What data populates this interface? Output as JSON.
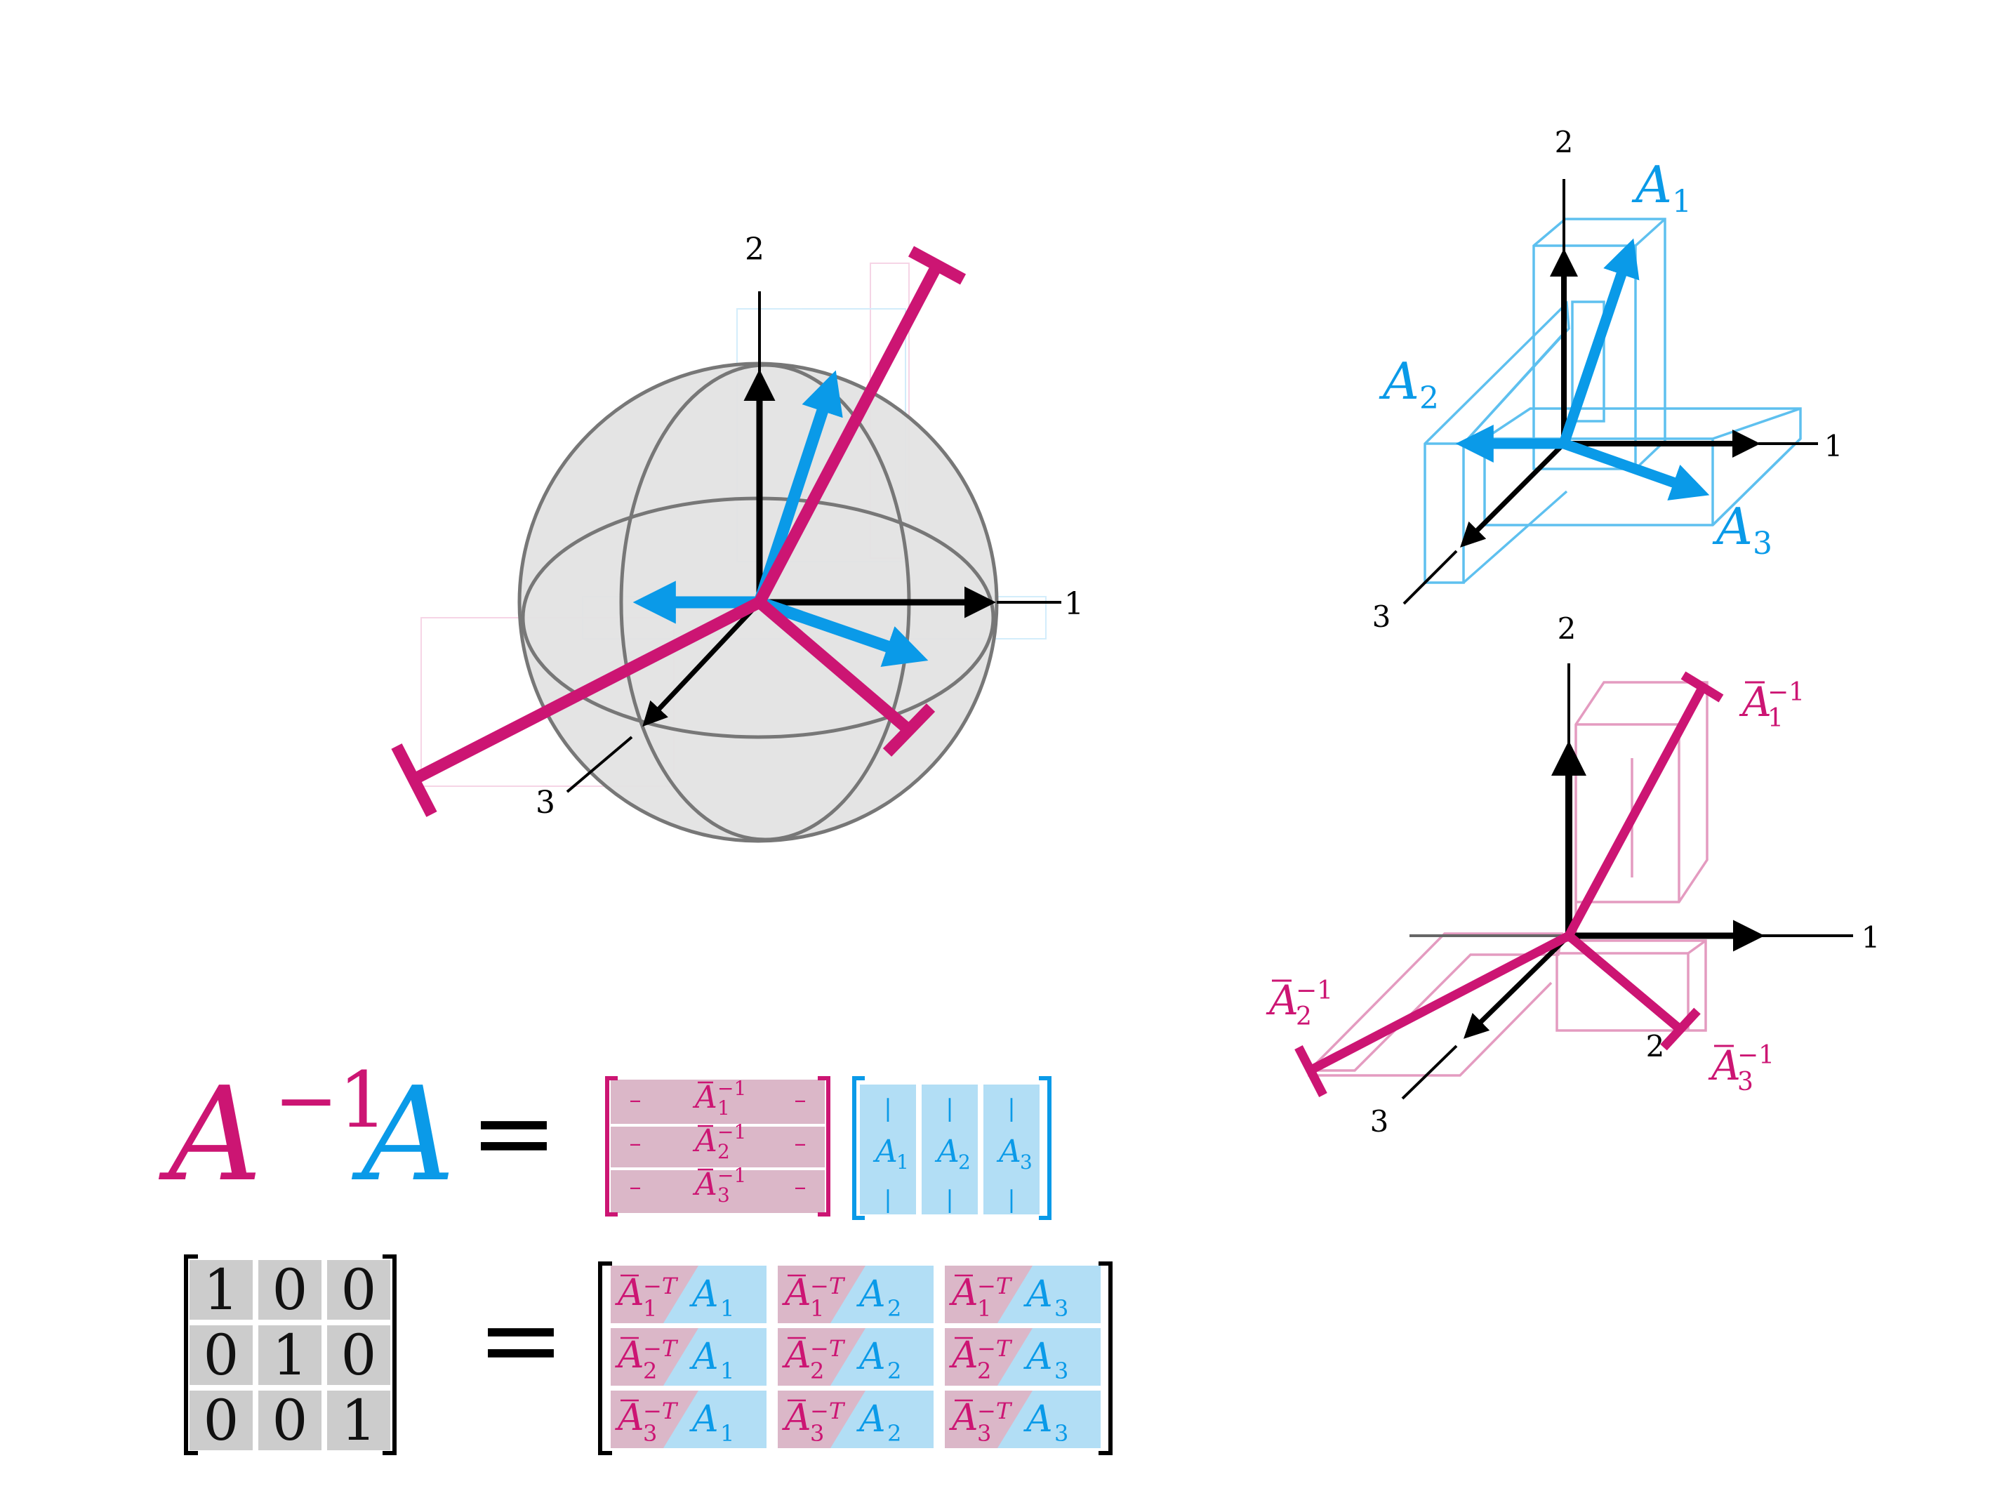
{
  "colors": {
    "magenta": "#cc1573",
    "blue": "#0a9ae8",
    "light_magenta": "#dbb7c8",
    "light_blue": "#b2def5",
    "gray_cell": "#cccccc",
    "sphere_fill": "#e3e3e3",
    "sphere_stroke": "#777777",
    "black": "#000000"
  },
  "axis_labels": {
    "x": "1",
    "y": "2",
    "z": "3"
  },
  "extra_label_two": "2",
  "vectors": {
    "A": "A",
    "inv": "−1",
    "neg_T": "−T",
    "subs": [
      "1",
      "2",
      "3"
    ],
    "row_dash": "–",
    "col_bar": "|"
  },
  "equation": {
    "lhs_A": "A",
    "lhs_sup": "−1",
    "lhs_A2": "A",
    "equals": "=",
    "identity": [
      [
        "1",
        "0",
        "0"
      ],
      [
        "0",
        "1",
        "0"
      ],
      [
        "0",
        "0",
        "1"
      ]
    ]
  }
}
